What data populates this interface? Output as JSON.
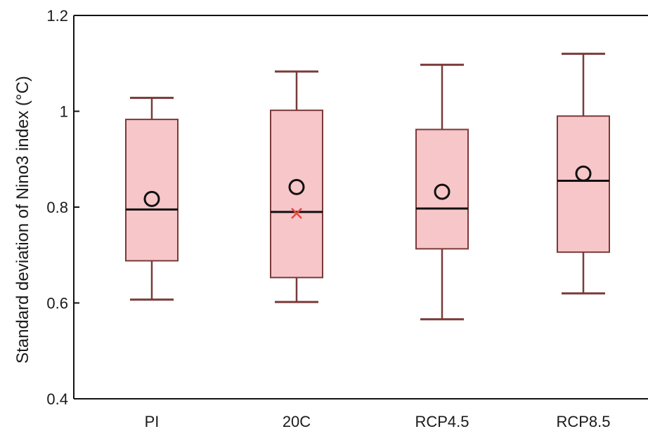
{
  "chart_data": {
    "type": "box",
    "title": "",
    "xlabel": "",
    "ylabel": "Standard deviation of Nino3 index (°C)",
    "ylim": [
      0.4,
      1.2
    ],
    "yticks": [
      0.4,
      0.6,
      0.8,
      1,
      1.2
    ],
    "ytick_labels": [
      "0.4",
      "0.6",
      "0.8",
      "1",
      "1.2"
    ],
    "categories": [
      "PI",
      "20C",
      "RCP4.5",
      "RCP8.5"
    ],
    "boxes": [
      {
        "category": "PI",
        "whisker_low": 0.607,
        "q1": 0.688,
        "median": 0.795,
        "q3": 0.983,
        "whisker_high": 1.028,
        "mean": 0.817
      },
      {
        "category": "20C",
        "whisker_low": 0.602,
        "q1": 0.653,
        "median": 0.79,
        "q3": 1.002,
        "whisker_high": 1.083,
        "mean": 0.842,
        "observed": 0.787
      },
      {
        "category": "RCP4.5",
        "whisker_low": 0.566,
        "q1": 0.713,
        "median": 0.797,
        "q3": 0.962,
        "whisker_high": 1.097,
        "mean": 0.832
      },
      {
        "category": "RCP8.5",
        "whisker_low": 0.62,
        "q1": 0.706,
        "median": 0.855,
        "q3": 0.99,
        "whisker_high": 1.12,
        "mean": 0.87
      }
    ],
    "colors": {
      "box_fill": "#f7c6c8",
      "box_edge": "#7a3a3a",
      "median_line": "#111111",
      "mean_marker": "#111111",
      "observed_marker": "#e8473f",
      "axis": "#111111"
    },
    "grid": false,
    "legend": "none"
  }
}
